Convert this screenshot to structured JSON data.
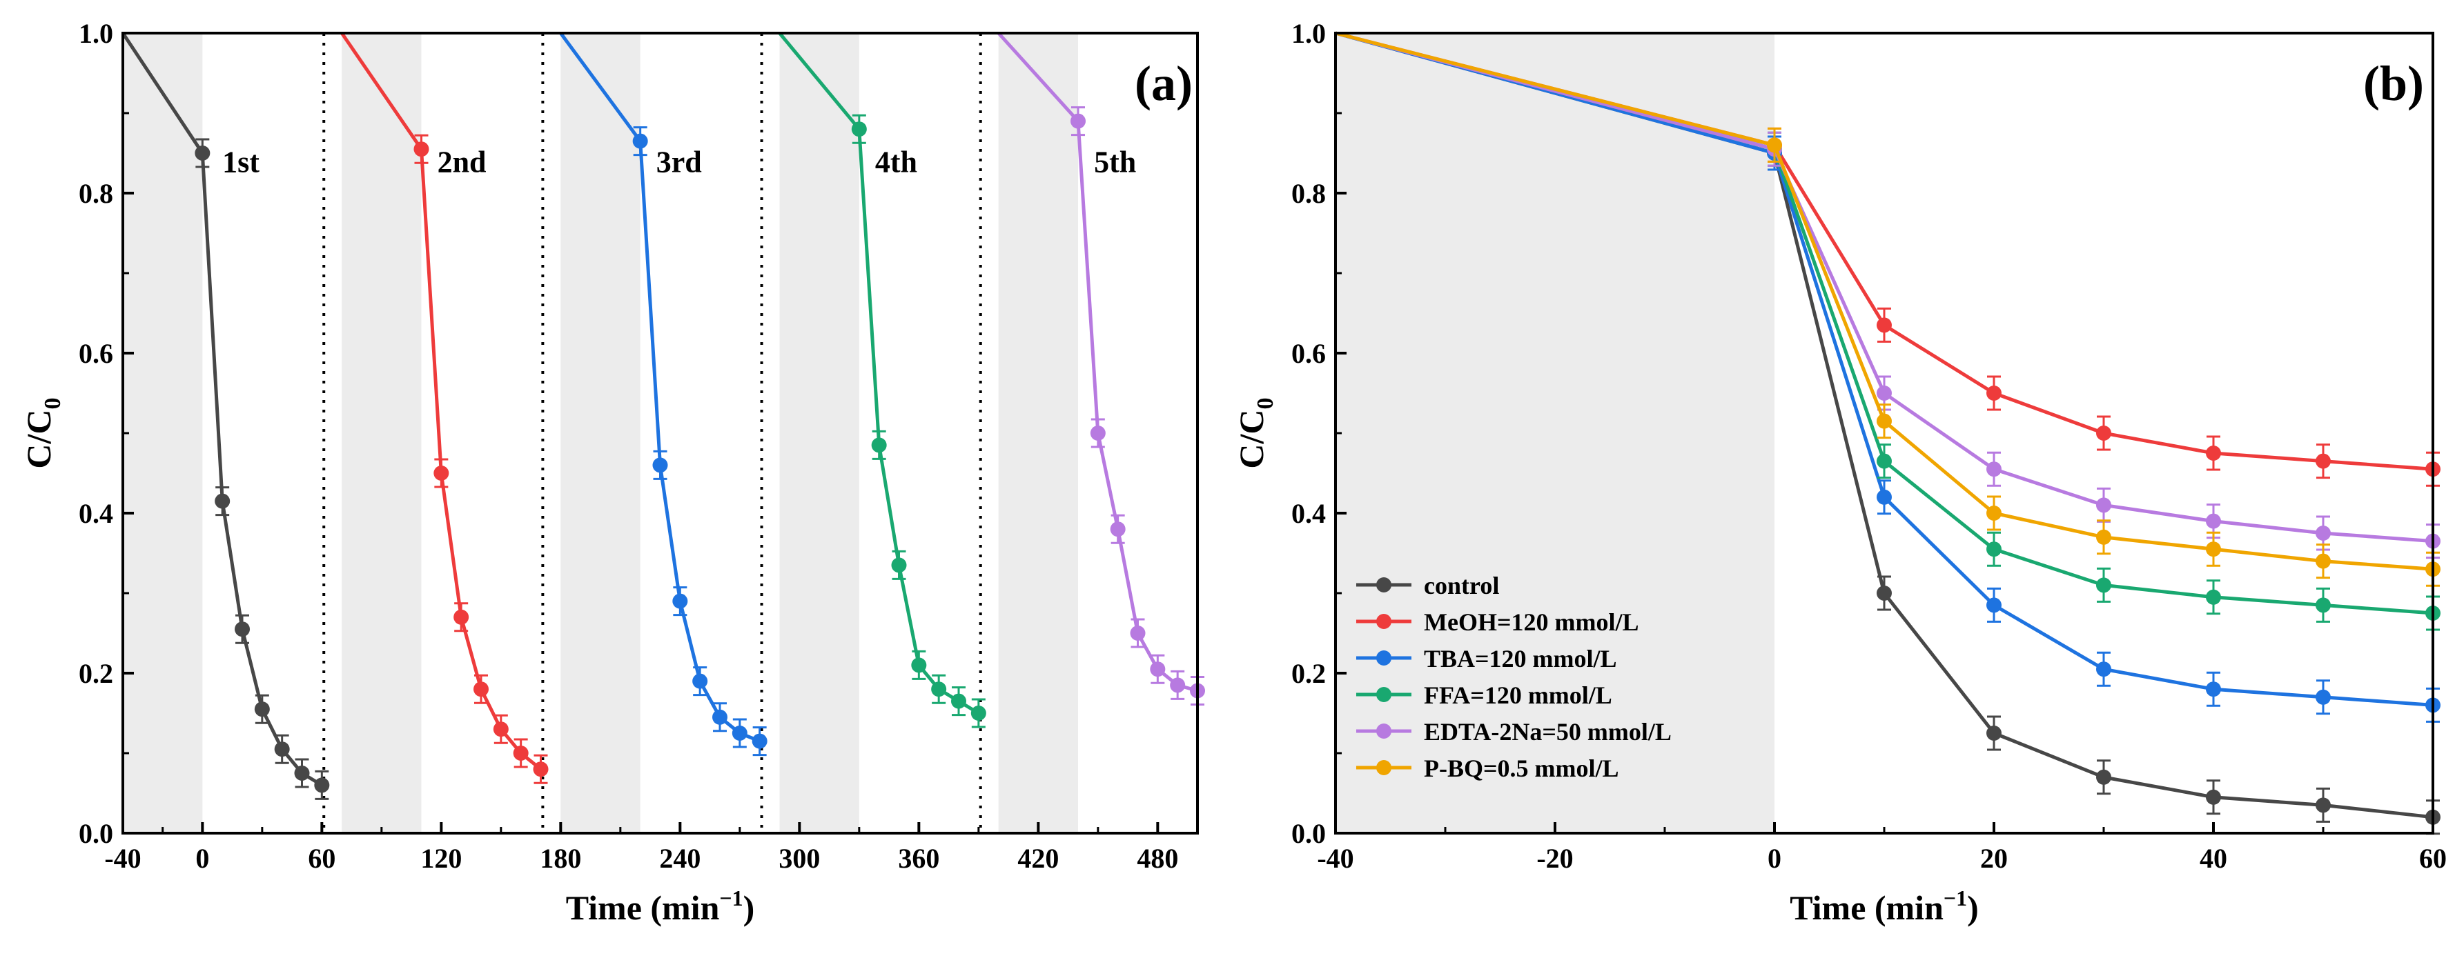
{
  "chart_data": [
    {
      "panel": "(a)",
      "type": "line",
      "xlabel": "Time (min",
      "xlabel_sup": "−1",
      "xlabel_close": ")",
      "ylabel": "C/C",
      "ylabel_sub": "0",
      "xlim": [
        -40,
        500
      ],
      "ylim": [
        0.0,
        1.0
      ],
      "xticks": [
        -40,
        0,
        60,
        120,
        180,
        240,
        300,
        360,
        420,
        480
      ],
      "yticks": [
        0.0,
        0.2,
        0.4,
        0.6,
        0.8,
        1.0
      ],
      "x_tick_labels": [
        "-40",
        "0",
        "60",
        "120",
        "180",
        "240",
        "300",
        "360",
        "420",
        "480"
      ],
      "y_tick_labels": [
        "0.0",
        "0.2",
        "0.4",
        "0.6",
        "0.8",
        "1.0"
      ],
      "dark_regions": [
        [
          -40,
          0
        ],
        [
          70,
          110
        ],
        [
          180,
          220
        ],
        [
          290,
          330
        ],
        [
          400,
          440
        ]
      ],
      "dividers": [
        61,
        171,
        281,
        391
      ],
      "series": [
        {
          "name": "1st",
          "color": "#474747",
          "label_at": [
            10,
            0.84
          ],
          "x": [
            -40,
            0,
            10,
            20,
            30,
            40,
            50,
            60
          ],
          "y": [
            1.0,
            0.85,
            0.415,
            0.255,
            0.155,
            0.105,
            0.075,
            0.06
          ]
        },
        {
          "name": "2nd",
          "color": "#ee3b3b",
          "label_at": [
            118,
            0.84
          ],
          "x": [
            70,
            110,
            120,
            130,
            140,
            150,
            160,
            170
          ],
          "y": [
            1.0,
            0.855,
            0.45,
            0.27,
            0.18,
            0.13,
            0.1,
            0.08
          ]
        },
        {
          "name": "3rd",
          "color": "#1e73e0",
          "label_at": [
            228,
            0.84
          ],
          "x": [
            180,
            220,
            230,
            240,
            250,
            260,
            270,
            280
          ],
          "y": [
            1.0,
            0.865,
            0.46,
            0.29,
            0.19,
            0.145,
            0.125,
            0.115
          ]
        },
        {
          "name": "4th",
          "color": "#19a870",
          "label_at": [
            338,
            0.84
          ],
          "x": [
            290,
            330,
            340,
            350,
            360,
            370,
            380,
            390
          ],
          "y": [
            1.0,
            0.88,
            0.485,
            0.335,
            0.21,
            0.18,
            0.165,
            0.15
          ]
        },
        {
          "name": "5th",
          "color": "#b77ae0",
          "label_at": [
            448,
            0.84
          ],
          "x": [
            400,
            440,
            450,
            460,
            470,
            480,
            490,
            500
          ],
          "y": [
            1.0,
            0.89,
            0.5,
            0.38,
            0.25,
            0.205,
            0.185,
            0.178
          ]
        }
      ]
    },
    {
      "panel": "(b)",
      "type": "line",
      "xlabel": "Time (min",
      "xlabel_sup": "−1",
      "xlabel_close": ")",
      "ylabel": "C/C",
      "ylabel_sub": "0",
      "xlim": [
        -40,
        60
      ],
      "ylim": [
        0.0,
        1.0
      ],
      "xticks": [
        -40,
        -20,
        0,
        20,
        40,
        60
      ],
      "yticks": [
        0.0,
        0.2,
        0.4,
        0.6,
        0.8,
        1.0
      ],
      "x_tick_labels": [
        "-40",
        "-20",
        "0",
        "20",
        "40",
        "60"
      ],
      "y_tick_labels": [
        "0.0",
        "0.2",
        "0.4",
        "0.6",
        "0.8",
        "1.0"
      ],
      "dark_regions": [
        [
          -40,
          0
        ]
      ],
      "legend_position": "bottom-left",
      "x": [
        -40,
        0,
        10,
        20,
        30,
        40,
        50,
        60
      ],
      "series": [
        {
          "name": "control",
          "color": "#474747",
          "y": [
            1.0,
            0.85,
            0.3,
            0.125,
            0.07,
            0.045,
            0.035,
            0.02
          ]
        },
        {
          "name": "MeOH=120 mmol/L",
          "color": "#ee3b3b",
          "y": [
            1.0,
            0.86,
            0.635,
            0.55,
            0.5,
            0.475,
            0.465,
            0.455
          ]
        },
        {
          "name": "TBA=120 mmol/L",
          "color": "#1e73e0",
          "y": [
            1.0,
            0.85,
            0.42,
            0.285,
            0.205,
            0.18,
            0.17,
            0.16
          ]
        },
        {
          "name": "FFA=120 mmol/L",
          "color": "#19a870",
          "y": [
            1.0,
            0.855,
            0.465,
            0.355,
            0.31,
            0.295,
            0.285,
            0.275
          ]
        },
        {
          "name": "EDTA-2Na=50 mmol/L",
          "color": "#b77ae0",
          "y": [
            1.0,
            0.855,
            0.55,
            0.455,
            0.41,
            0.39,
            0.375,
            0.365
          ]
        },
        {
          "name": "P-BQ=0.5 mmol/L",
          "color": "#f0a500",
          "y": [
            1.0,
            0.86,
            0.515,
            0.4,
            0.37,
            0.355,
            0.34,
            0.33
          ]
        }
      ]
    }
  ]
}
